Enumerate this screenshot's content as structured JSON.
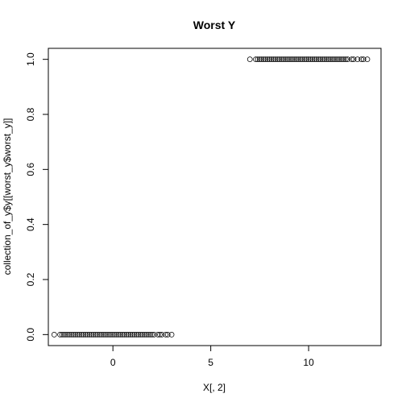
{
  "chart_data": {
    "type": "scatter",
    "title": "Worst Y",
    "xlabel": "X[, 2]",
    "ylabel": "collection_of_y$y[[worst_y$worst_y]]",
    "xlim": [
      -3.3,
      13.7
    ],
    "ylim": [
      -0.04,
      1.04
    ],
    "xticks": [
      0,
      5,
      10
    ],
    "xtick_labels": [
      "0",
      "5",
      "10"
    ],
    "yticks": [
      0,
      0.2,
      0.4,
      0.6,
      0.8,
      1
    ],
    "ytick_labels": [
      "0.0",
      "0.2",
      "0.4",
      "0.6",
      "0.8",
      "1.0"
    ],
    "grid": false,
    "marker": "open-circle",
    "series": [
      {
        "y": 0,
        "x": [
          -3.0,
          -2.7,
          -2.6,
          -2.5,
          -2.4,
          -2.3,
          -2.2,
          -2.1,
          -2.0,
          -1.9,
          -1.8,
          -1.7,
          -1.6,
          -1.5,
          -1.4,
          -1.3,
          -1.2,
          -1.1,
          -1.0,
          -0.9,
          -0.8,
          -0.7,
          -0.6,
          -0.5,
          -0.4,
          -0.3,
          -0.2,
          -0.1,
          0.0,
          0.1,
          0.2,
          0.3,
          0.4,
          0.5,
          0.6,
          0.7,
          0.8,
          0.9,
          1.0,
          1.1,
          1.2,
          1.3,
          1.4,
          1.5,
          1.6,
          1.7,
          1.8,
          1.9,
          2.0,
          2.1,
          2.3,
          2.4,
          2.5,
          2.7,
          2.8,
          3.0
        ]
      },
      {
        "y": 1,
        "x": [
          7.0,
          7.3,
          7.4,
          7.5,
          7.6,
          7.7,
          7.8,
          7.9,
          8.0,
          8.1,
          8.2,
          8.3,
          8.4,
          8.5,
          8.6,
          8.7,
          8.8,
          8.9,
          9.0,
          9.1,
          9.2,
          9.3,
          9.4,
          9.5,
          9.6,
          9.7,
          9.8,
          9.9,
          10.0,
          10.1,
          10.2,
          10.3,
          10.4,
          10.5,
          10.6,
          10.7,
          10.8,
          10.9,
          11.0,
          11.1,
          11.2,
          11.3,
          11.4,
          11.5,
          11.6,
          11.7,
          11.8,
          11.9,
          12.0,
          12.2,
          12.3,
          12.5,
          12.7,
          12.8,
          13.0
        ]
      }
    ]
  }
}
